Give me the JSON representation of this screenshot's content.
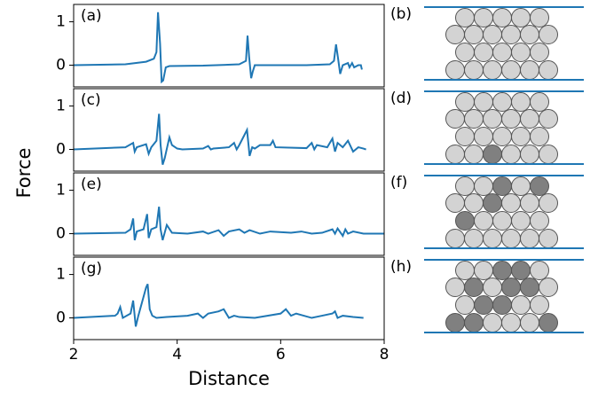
{
  "chart_data": [
    {
      "type": "line",
      "label": "(a)",
      "ylabel": "Force",
      "color": "#1f77b4",
      "xlim": [
        2,
        8
      ],
      "ylim": [
        -0.5,
        1.4
      ],
      "yticks": [
        0,
        1
      ],
      "x": [
        2,
        3.0,
        3.4,
        3.55,
        3.6,
        3.63,
        3.67,
        3.7,
        3.73,
        3.78,
        3.85,
        4.5,
        5.2,
        5.33,
        5.36,
        5.39,
        5.43,
        5.46,
        5.5,
        6.5,
        6.95,
        7.03,
        7.07,
        7.11,
        7.15,
        7.2,
        7.3,
        7.33,
        7.38,
        7.42,
        7.5,
        7.55,
        7.57
      ],
      "values": [
        0,
        0.02,
        0.08,
        0.15,
        0.3,
        1.22,
        0.5,
        -0.38,
        -0.35,
        -0.05,
        -0.02,
        -0.01,
        0.02,
        0.1,
        0.68,
        0.2,
        -0.3,
        -0.15,
        0,
        0,
        0.02,
        0.1,
        0.48,
        0.15,
        -0.2,
        0,
        0.05,
        -0.05,
        0.05,
        -0.05,
        0,
        0,
        -0.1
      ]
    },
    {
      "type": "line",
      "label": "(c)",
      "color": "#1f77b4",
      "xlim": [
        2,
        8
      ],
      "ylim": [
        -0.5,
        1.4
      ],
      "yticks": [
        0,
        1
      ],
      "x": [
        2,
        3.0,
        3.15,
        3.18,
        3.22,
        3.4,
        3.45,
        3.5,
        3.6,
        3.65,
        3.68,
        3.72,
        3.76,
        3.85,
        3.9,
        4.0,
        4.1,
        4.5,
        4.6,
        4.65,
        4.7,
        5.0,
        5.1,
        5.15,
        5.2,
        5.35,
        5.4,
        5.45,
        5.5,
        5.6,
        5.8,
        5.85,
        5.9,
        6.5,
        6.6,
        6.65,
        6.7,
        6.9,
        7.0,
        7.05,
        7.1,
        7.2,
        7.3,
        7.4,
        7.5,
        7.6,
        7.65
      ],
      "values": [
        0,
        0.05,
        0.15,
        -0.05,
        0.05,
        0.12,
        -0.1,
        0.05,
        0.2,
        0.82,
        0.1,
        -0.35,
        -0.2,
        0.28,
        0.1,
        0.02,
        0,
        0.02,
        0.08,
        0,
        0.02,
        0.05,
        0.15,
        0,
        0.1,
        0.45,
        -0.15,
        0.05,
        0.02,
        0.1,
        0.1,
        0.2,
        0.05,
        0.03,
        0.15,
        0,
        0.1,
        0.05,
        0.25,
        -0.05,
        0.15,
        0.05,
        0.2,
        -0.05,
        0.05,
        0.02,
        0
      ]
    },
    {
      "type": "line",
      "label": "(e)",
      "color": "#1f77b4",
      "xlim": [
        2,
        8
      ],
      "ylim": [
        -0.5,
        1.4
      ],
      "yticks": [
        0,
        1
      ],
      "x": [
        2,
        3.0,
        3.1,
        3.15,
        3.18,
        3.22,
        3.35,
        3.42,
        3.45,
        3.5,
        3.6,
        3.65,
        3.68,
        3.72,
        3.8,
        3.9,
        4.2,
        4.5,
        4.6,
        4.8,
        4.9,
        5.0,
        5.2,
        5.3,
        5.4,
        5.6,
        5.8,
        6.2,
        6.4,
        6.6,
        6.8,
        7.0,
        7.05,
        7.1,
        7.2,
        7.25,
        7.3,
        7.4,
        7.6,
        8
      ],
      "values": [
        0,
        0.02,
        0.1,
        0.35,
        -0.15,
        0.05,
        0.1,
        0.45,
        -0.1,
        0.1,
        0.15,
        0.62,
        0.1,
        -0.15,
        0.2,
        0.02,
        0,
        0.05,
        0,
        0.08,
        -0.05,
        0.05,
        0.1,
        0.02,
        0.08,
        0,
        0.05,
        0.02,
        0.05,
        0,
        0.02,
        0.1,
        0,
        0.12,
        -0.05,
        0.1,
        0,
        0.05,
        0,
        0
      ]
    },
    {
      "type": "line",
      "label": "(g)",
      "xlabel": "Distance",
      "color": "#1f77b4",
      "xlim": [
        2,
        8
      ],
      "ylim": [
        -0.5,
        1.4
      ],
      "yticks": [
        0,
        1
      ],
      "xticks": [
        2,
        4,
        6,
        8
      ],
      "x": [
        2,
        2.8,
        2.85,
        2.9,
        2.95,
        3.1,
        3.15,
        3.2,
        3.25,
        3.4,
        3.43,
        3.47,
        3.52,
        3.6,
        3.8,
        4.2,
        4.4,
        4.5,
        4.6,
        4.8,
        4.9,
        5.0,
        5.1,
        5.2,
        5.5,
        6.0,
        6.1,
        6.2,
        6.3,
        6.6,
        6.8,
        7.0,
        7.05,
        7.1,
        7.2,
        7.4,
        7.6
      ],
      "values": [
        0,
        0.05,
        0.1,
        0.25,
        0,
        0.1,
        0.4,
        -0.2,
        0.05,
        0.7,
        0.78,
        0.2,
        0.05,
        0,
        0.02,
        0.05,
        0.1,
        0,
        0.1,
        0.15,
        0.2,
        0,
        0.05,
        0.02,
        0,
        0.1,
        0.2,
        0.05,
        0.1,
        0,
        0.05,
        0.1,
        0.15,
        0,
        0.05,
        0.02,
        0
      ]
    }
  ],
  "diagrams": {
    "labels": [
      "(b)",
      "(d)",
      "(f)",
      "(h)"
    ]
  }
}
